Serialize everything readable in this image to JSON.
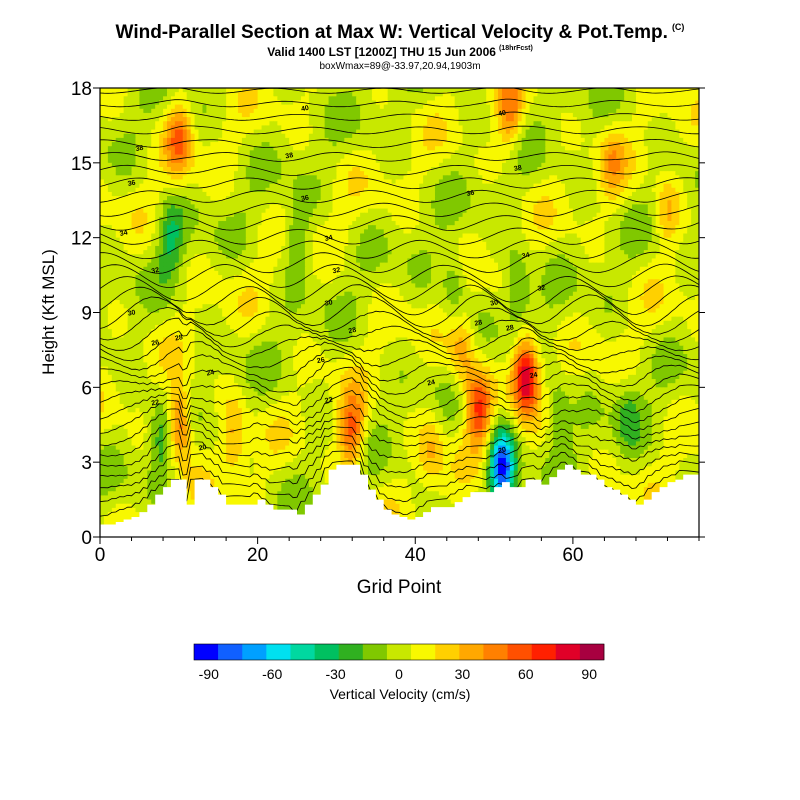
{
  "title": {
    "main": "Wind-Parallel Section at Max W: Vertical Velocity & Pot.Temp.",
    "copyright": "(C)",
    "valid": "Valid 1400 LST [1200Z] THU 15 Jun 2006",
    "forecast_tag": "(18hrFcst)",
    "box": "boxWmax=89@-33.97,20.94,1903m"
  },
  "chart_data": {
    "type": "heatmap",
    "xlabel": "Grid Point",
    "ylabel": "Height (Kft MSL)",
    "xlim": [
      0,
      76
    ],
    "ylim": [
      0,
      18
    ],
    "xticks": [
      0,
      20,
      40,
      60
    ],
    "yticks": [
      0,
      3,
      6,
      9,
      12,
      15,
      18
    ],
    "colorbar": {
      "label": "Vertical Velocity (cm/s)",
      "ticks": [
        -90,
        -60,
        -30,
        0,
        30,
        60,
        90
      ],
      "colors": [
        "#0000ff",
        "#1060ff",
        "#00a0ff",
        "#00e0f0",
        "#00d8a0",
        "#00c060",
        "#30b020",
        "#80c800",
        "#c8e800",
        "#f8f800",
        "#ffd000",
        "#ffa800",
        "#ff8000",
        "#ff5000",
        "#ff2000",
        "#e00028",
        "#a80040"
      ]
    },
    "terrain_heights_kft": [
      0.5,
      0.5,
      0.6,
      0.7,
      0.8,
      1.0,
      1.3,
      1.7,
      2.0,
      2.3,
      2.3,
      1.3,
      2.3,
      2.3,
      2.0,
      1.7,
      1.3,
      1.3,
      1.3,
      1.3,
      1.5,
      1.3,
      1.1,
      1.1,
      1.1,
      0.9,
      1.3,
      1.7,
      2.1,
      2.7,
      2.9,
      2.9,
      2.9,
      2.5,
      1.9,
      1.5,
      1.1,
      0.9,
      0.8,
      0.7,
      0.8,
      1.0,
      1.2,
      1.2,
      1.2,
      1.4,
      1.6,
      1.8,
      1.8,
      1.8,
      2.0,
      2.2,
      2.0,
      2.0,
      2.3,
      2.3,
      2.1,
      2.4,
      2.7,
      2.9,
      2.7,
      2.5,
      2.5,
      2.3,
      2.0,
      1.9,
      1.7,
      1.5,
      1.3,
      1.5,
      1.8,
      2.0,
      2.2,
      2.3,
      2.5,
      2.5,
      2.5
    ],
    "updrafts_cm_s": [
      {
        "x": 10,
        "y": 4.5,
        "w": 60
      },
      {
        "x": 10,
        "y": 16,
        "w": 45
      },
      {
        "x": 32,
        "y": 4.2,
        "w": 55
      },
      {
        "x": 48,
        "y": 5.2,
        "w": 60
      },
      {
        "x": 54,
        "y": 6.5,
        "w": 89
      },
      {
        "x": 46,
        "y": 7.5,
        "w": 35
      },
      {
        "x": 52,
        "y": 17,
        "w": 40
      },
      {
        "x": 65,
        "y": 15,
        "w": 25
      },
      {
        "x": 17,
        "y": 4,
        "w": 30
      },
      {
        "x": 42,
        "y": 3.5,
        "w": 25
      },
      {
        "x": 72,
        "y": 13,
        "w": 25
      }
    ],
    "downdrafts_cm_s": [
      {
        "x": 51,
        "y": 2.8,
        "w": -90
      },
      {
        "x": 53,
        "y": 10,
        "w": -30
      },
      {
        "x": 9,
        "y": 12,
        "w": -30
      },
      {
        "x": 8,
        "y": 4,
        "w": -30
      },
      {
        "x": 45,
        "y": 10,
        "w": -25
      },
      {
        "x": 25,
        "y": 12,
        "w": -25
      },
      {
        "x": 58,
        "y": 5,
        "w": -25
      },
      {
        "x": 67,
        "y": 5,
        "w": -20
      }
    ],
    "theta_contour_labels": [
      {
        "x": 26,
        "y": 17.2,
        "label": "40"
      },
      {
        "x": 51,
        "y": 17.0,
        "label": "40"
      },
      {
        "x": 5,
        "y": 15.6,
        "label": "38"
      },
      {
        "x": 24,
        "y": 15.3,
        "label": "38"
      },
      {
        "x": 53,
        "y": 14.8,
        "label": "38"
      },
      {
        "x": 4,
        "y": 14.2,
        "label": "36"
      },
      {
        "x": 26,
        "y": 13.6,
        "label": "36"
      },
      {
        "x": 47,
        "y": 13.8,
        "label": "36"
      },
      {
        "x": 3,
        "y": 12.2,
        "label": "34"
      },
      {
        "x": 29,
        "y": 12.0,
        "label": "34"
      },
      {
        "x": 54,
        "y": 11.3,
        "label": "34"
      },
      {
        "x": 7,
        "y": 10.7,
        "label": "32"
      },
      {
        "x": 30,
        "y": 10.7,
        "label": "32"
      },
      {
        "x": 56,
        "y": 10.0,
        "label": "32"
      },
      {
        "x": 4,
        "y": 9.0,
        "label": "30"
      },
      {
        "x": 29,
        "y": 9.4,
        "label": "30"
      },
      {
        "x": 50,
        "y": 9.4,
        "label": "30"
      },
      {
        "x": 10,
        "y": 8.0,
        "label": "28"
      },
      {
        "x": 32,
        "y": 8.3,
        "label": "28"
      },
      {
        "x": 48,
        "y": 8.6,
        "label": "28"
      },
      {
        "x": 52,
        "y": 8.4,
        "label": "28"
      },
      {
        "x": 7,
        "y": 7.8,
        "label": "26"
      },
      {
        "x": 28,
        "y": 7.1,
        "label": "26"
      },
      {
        "x": 14,
        "y": 6.6,
        "label": "24"
      },
      {
        "x": 42,
        "y": 6.2,
        "label": "24"
      },
      {
        "x": 55,
        "y": 6.5,
        "label": "24"
      },
      {
        "x": 7,
        "y": 5.4,
        "label": "22"
      },
      {
        "x": 29,
        "y": 5.5,
        "label": "22"
      },
      {
        "x": 13,
        "y": 3.6,
        "label": "20"
      },
      {
        "x": 51,
        "y": 3.5,
        "label": "20"
      }
    ]
  }
}
